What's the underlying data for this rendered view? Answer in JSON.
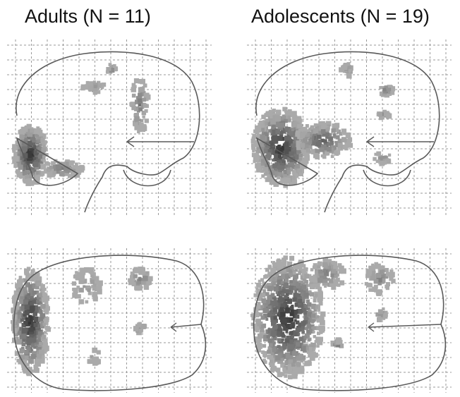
{
  "titles": {
    "adults": "Adults (N = 11)",
    "adolescents": "Adolescents (N = 19)"
  },
  "colors": {
    "background": "#ffffff",
    "grid": "#9a9a9a",
    "outline": "#5a5a5a",
    "activation_dark": "#1a1a1a",
    "activation_light": "#9a9a9a"
  },
  "panels": [
    {
      "group": "adults",
      "view": "sagittal"
    },
    {
      "group": "adolescents",
      "view": "sagittal"
    },
    {
      "group": "adults",
      "view": "axial"
    },
    {
      "group": "adolescents",
      "view": "axial"
    }
  ]
}
